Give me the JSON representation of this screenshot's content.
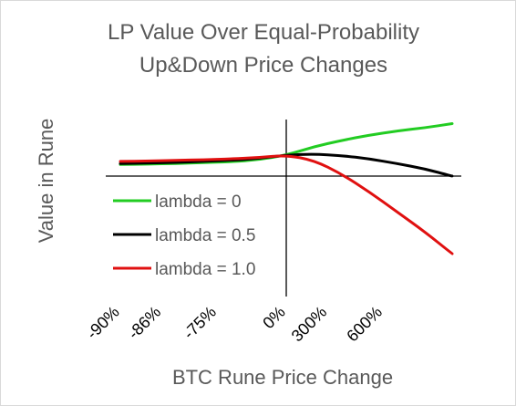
{
  "chart_data": {
    "type": "line",
    "title": [
      "LP Value Over Equal-Probability",
      "Up&Down Price Changes"
    ],
    "xlabel": "BTC Rune Price Change",
    "ylabel": "Value in Rune",
    "x_tick_labels": [
      "-90%",
      "-86%",
      "-75%",
      "0%",
      "300%",
      "600%"
    ],
    "x": [
      -6,
      -5,
      -4,
      -3,
      -2,
      -1,
      0,
      1,
      2,
      3,
      4,
      5,
      6
    ],
    "series": [
      {
        "name": "lambda = 0",
        "color": "#22cc22",
        "values": [
          0.55,
          0.57,
          0.6,
          0.64,
          0.68,
          0.78,
          1.0,
          1.4,
          1.7,
          1.95,
          2.15,
          2.3,
          2.5
        ]
      },
      {
        "name": "lambda = 0.5",
        "color": "#000000",
        "values": [
          0.6,
          0.62,
          0.65,
          0.7,
          0.75,
          0.84,
          1.0,
          1.05,
          0.98,
          0.82,
          0.6,
          0.35,
          0.0
        ]
      },
      {
        "name": "lambda = 1.0",
        "color": "#e01010",
        "values": [
          0.7,
          0.72,
          0.75,
          0.78,
          0.82,
          0.88,
          1.0,
          0.75,
          0.1,
          -0.75,
          -1.7,
          -2.65,
          -3.7
        ]
      }
    ],
    "legend_position": "left-middle",
    "grid": false
  }
}
